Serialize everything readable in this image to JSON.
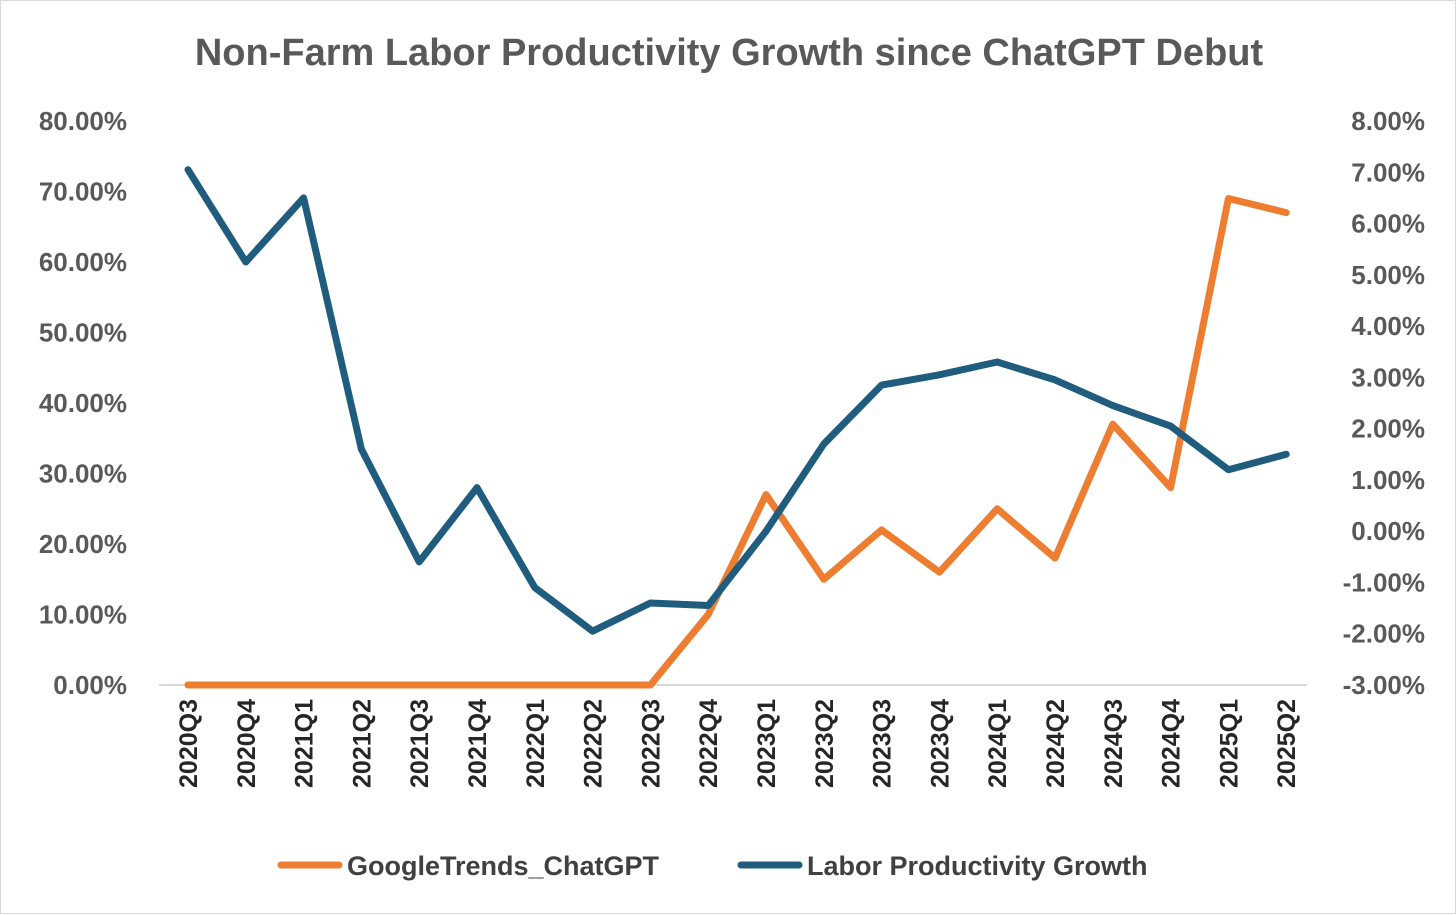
{
  "chart_data": {
    "type": "line",
    "title": "Non-Farm Labor Productivity Growth since ChatGPT Debut",
    "categories": [
      "2020Q3",
      "2020Q4",
      "2021Q1",
      "2021Q2",
      "2021Q3",
      "2021Q4",
      "2022Q1",
      "2022Q2",
      "2022Q3",
      "2022Q4",
      "2023Q1",
      "2023Q2",
      "2023Q3",
      "2023Q4",
      "2024Q1",
      "2024Q2",
      "2024Q3",
      "2024Q4",
      "2025Q1",
      "2025Q2"
    ],
    "left_axis": {
      "ylim": [
        0,
        80
      ],
      "tick_labels": [
        "0.00%",
        "10.00%",
        "20.00%",
        "30.00%",
        "40.00%",
        "50.00%",
        "60.00%",
        "70.00%",
        "80.00%"
      ]
    },
    "right_axis": {
      "ylim": [
        -3,
        8
      ],
      "tick_labels": [
        "-3.00%",
        "-2.00%",
        "-1.00%",
        "0.00%",
        "1.00%",
        "2.00%",
        "3.00%",
        "4.00%",
        "5.00%",
        "6.00%",
        "7.00%",
        "8.00%"
      ]
    },
    "series": [
      {
        "name": "GoogleTrends_ChatGPT",
        "axis": "left",
        "color": "#ED7D31",
        "values": [
          0,
          0,
          0,
          0,
          0,
          0,
          0,
          0,
          0,
          10,
          27,
          15,
          22,
          16,
          25,
          18,
          37,
          28,
          69,
          67
        ]
      },
      {
        "name": "Labor Productivity Growth",
        "axis": "right",
        "color": "#1F5C7D",
        "values": [
          7.05,
          5.25,
          6.5,
          1.6,
          -0.6,
          0.85,
          -1.1,
          -1.95,
          -1.4,
          -1.45,
          0.0,
          1.7,
          2.85,
          3.05,
          3.3,
          2.95,
          2.45,
          2.05,
          1.2,
          1.5
        ]
      }
    ],
    "legend": {
      "position": "bottom",
      "items": [
        "GoogleTrends_ChatGPT",
        "Labor Productivity Growth"
      ]
    },
    "grid": false
  }
}
